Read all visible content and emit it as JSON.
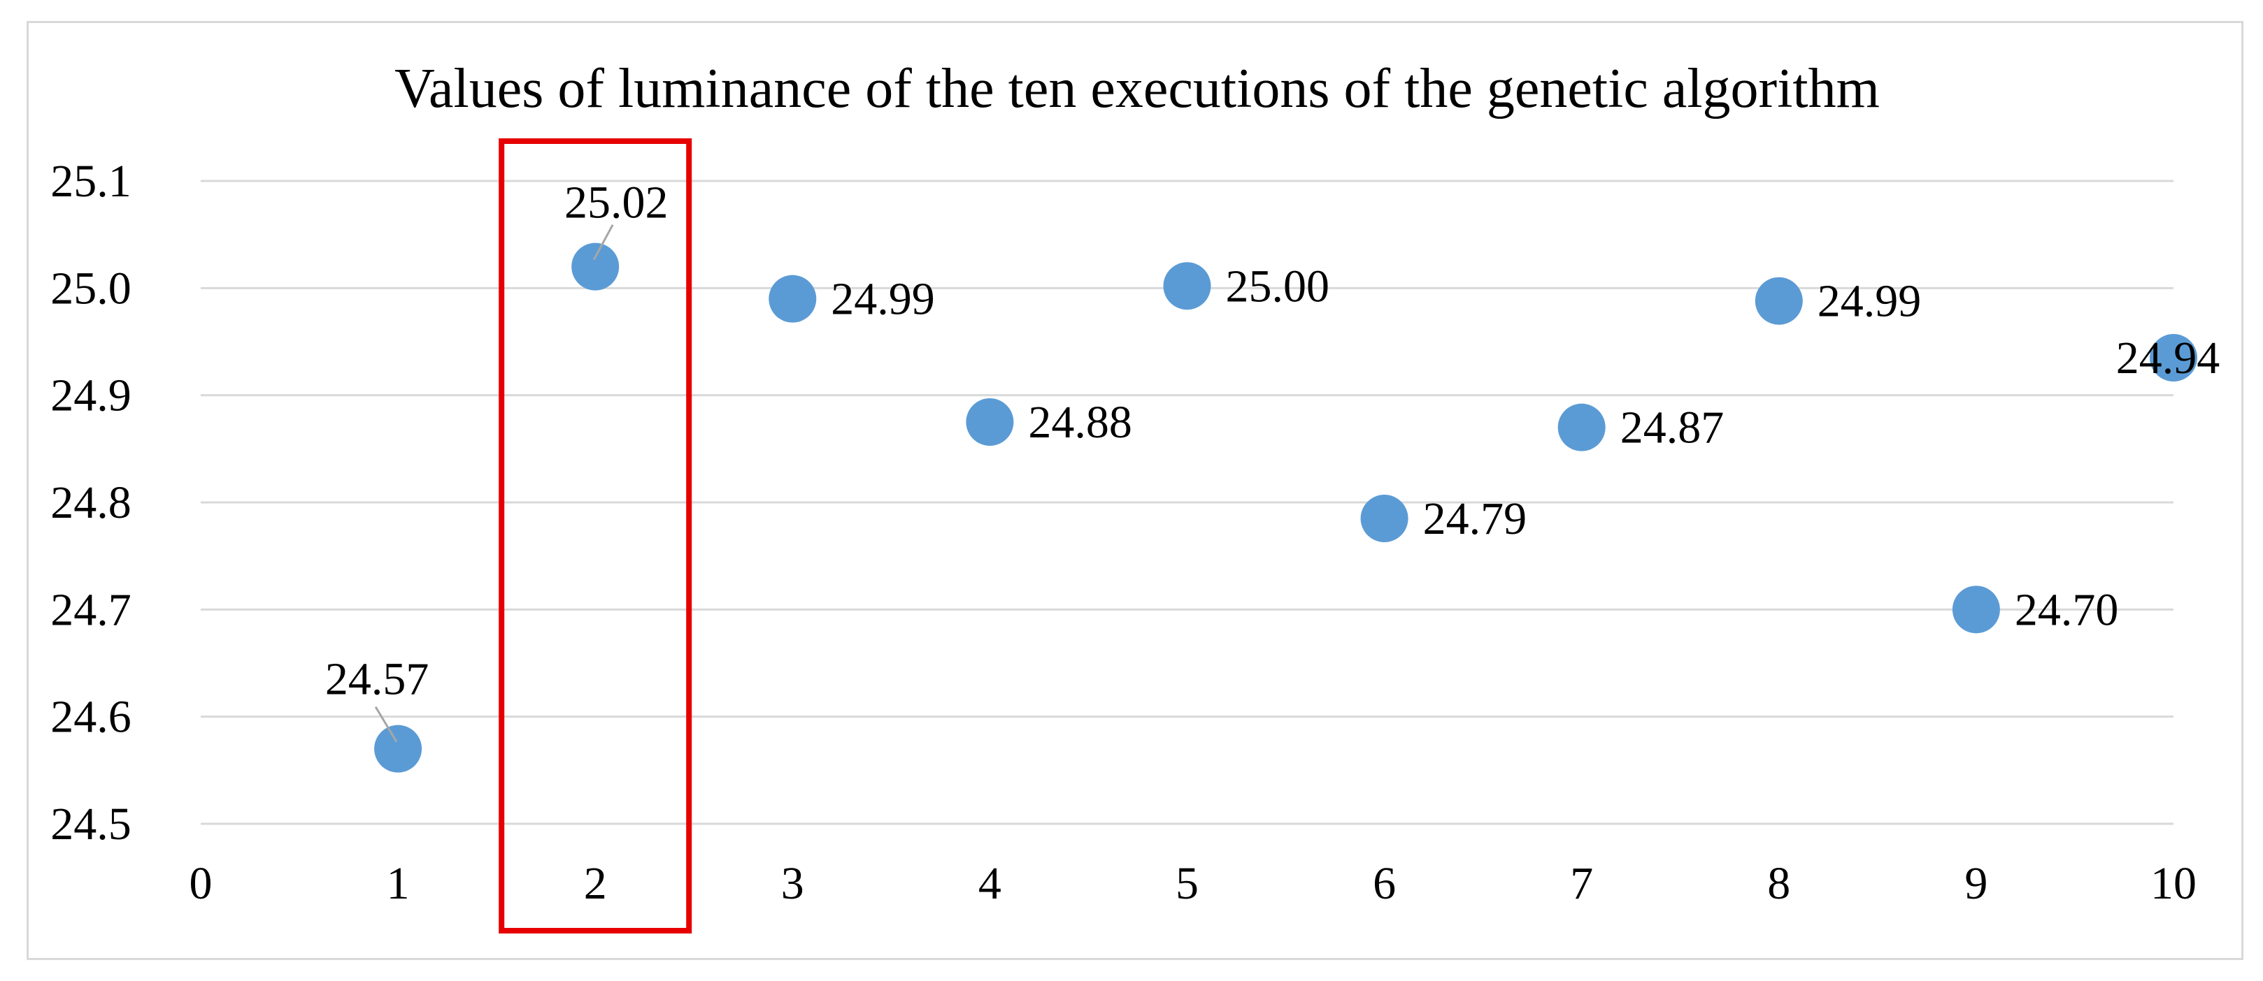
{
  "chart_data": {
    "type": "scatter",
    "title": "Values of luminance of the ten executions of the genetic algorithm",
    "xlabel": "",
    "ylabel": "",
    "xlim": [
      0,
      10
    ],
    "ylim": [
      24.5,
      25.1
    ],
    "x_ticks": [
      0,
      1,
      2,
      3,
      4,
      5,
      6,
      7,
      8,
      9,
      10
    ],
    "y_ticks": [
      "24.5",
      "24.6",
      "24.7",
      "24.8",
      "24.9",
      "25.0",
      "25.1"
    ],
    "grid": true,
    "legend": "none",
    "series": [
      {
        "x": [
          1,
          2,
          3,
          4,
          5,
          6,
          7,
          8,
          9,
          10
        ],
        "values": [
          24.57,
          25.02,
          24.99,
          24.875,
          25.002,
          24.785,
          24.87,
          24.988,
          24.7,
          24.935
        ],
        "labels": [
          "24.57",
          "25.02",
          "24.99",
          "24.88",
          "25.00",
          "24.79",
          "24.87",
          "24.99",
          "24.70",
          "24.94"
        ],
        "color": "#5b9bd5"
      }
    ],
    "highlight": {
      "x": 2,
      "color": "#e60000"
    }
  }
}
